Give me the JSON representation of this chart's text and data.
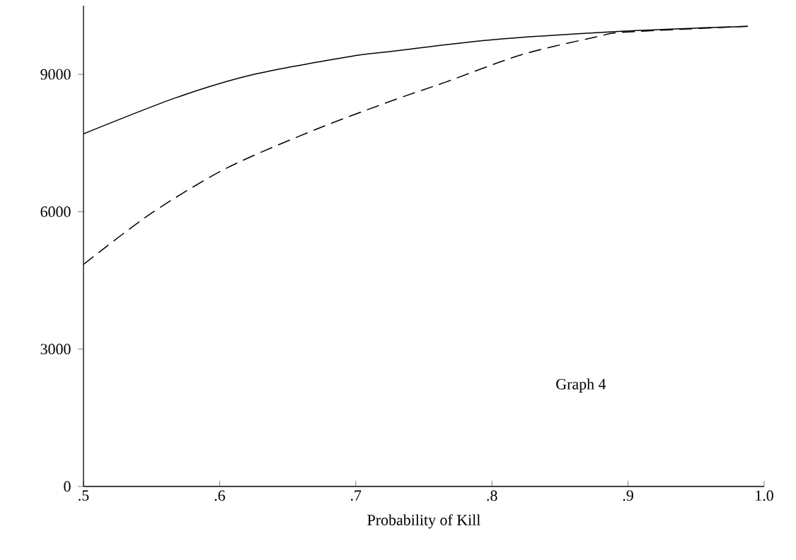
{
  "chart_data": {
    "type": "line",
    "xlabel": "Probability of Kill",
    "annotations": [
      "Graph 4"
    ],
    "xlim": [
      0.5,
      1.0
    ],
    "ylim": [
      0,
      10500
    ],
    "xticks": [
      {
        "value": 0.5,
        "label": ".5"
      },
      {
        "value": 0.6,
        "label": ".6"
      },
      {
        "value": 0.7,
        "label": ".7"
      },
      {
        "value": 0.8,
        "label": ".8"
      },
      {
        "value": 0.9,
        "label": ".9"
      },
      {
        "value": 1.0,
        "label": "1.0"
      }
    ],
    "yticks": [
      0,
      3000,
      6000,
      9000
    ],
    "grid": false,
    "marker": "none",
    "series": [
      {
        "color": "#000000",
        "line_style": "solid",
        "x": [
          0.5,
          0.568,
          0.624,
          0.698,
          0.729,
          0.799,
          0.895,
          0.988
        ],
        "values": [
          7700,
          8490,
          8990,
          9400,
          9510,
          9750,
          9940,
          10050
        ]
      },
      {
        "color": "#000000",
        "line_style": "dashed",
        "x": [
          0.5,
          0.55,
          0.605,
          0.67,
          0.729,
          0.766,
          0.822,
          0.877,
          0.897,
          0.988
        ],
        "values": [
          4850,
          5970,
          6950,
          7790,
          8450,
          8830,
          9430,
          9820,
          9920,
          10050
        ]
      }
    ]
  }
}
